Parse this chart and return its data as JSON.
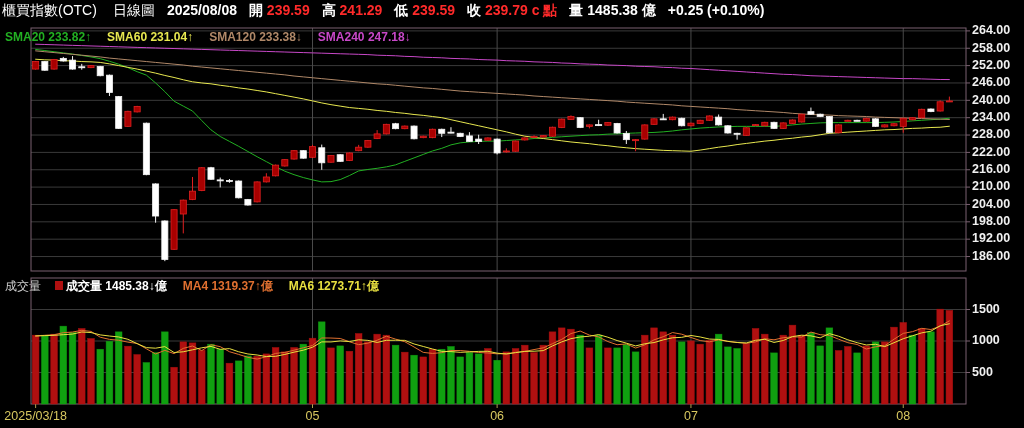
{
  "chart_data": [
    {
      "type": "candlestick",
      "title": "櫃買指數(OTC)",
      "subtitle": "日線圖",
      "annotations": [
        "2025/08/08",
        "開 239.59",
        "高 241.29",
        "低 239.59",
        "收 239.79 c 點",
        "量 1485.38 億",
        "+0.25 (+0.10%)"
      ],
      "categories": [
        "2025/03/18",
        null,
        null,
        null,
        null,
        null,
        null,
        null,
        null,
        null,
        null,
        null,
        null,
        null,
        null,
        null,
        null,
        null,
        null,
        null,
        null,
        null,
        null,
        null,
        null,
        null,
        null,
        null,
        null,
        null,
        "05",
        null,
        null,
        null,
        null,
        null,
        null,
        null,
        null,
        null,
        null,
        null,
        null,
        null,
        null,
        null,
        null,
        null,
        null,
        null,
        "06",
        null,
        null,
        null,
        null,
        null,
        null,
        null,
        null,
        null,
        null,
        null,
        null,
        null,
        null,
        null,
        null,
        null,
        null,
        null,
        null,
        "07",
        null,
        null,
        null,
        null,
        null,
        null,
        null,
        null,
        null,
        null,
        null,
        null,
        null,
        null,
        null,
        null,
        null,
        null,
        null,
        null,
        null,
        null,
        "08",
        null,
        null,
        null,
        null,
        null
      ],
      "ohlc": [
        [
          250.8,
          253.6,
          250.6,
          253.4
        ],
        [
          253.4,
          253.6,
          250.2,
          250.4
        ],
        [
          250.8,
          254.3,
          250.6,
          254.1
        ],
        [
          254.5,
          255.0,
          253.4,
          253.6
        ],
        [
          253.9,
          255.3,
          250.6,
          250.8
        ],
        [
          251.6,
          252.6,
          250.6,
          251.3
        ],
        [
          251.3,
          252.2,
          251.1,
          252.0
        ],
        [
          251.7,
          251.9,
          248.3,
          248.5
        ],
        [
          248.7,
          248.9,
          241.5,
          242.7
        ],
        [
          241.3,
          241.5,
          230.1,
          230.3
        ],
        [
          231.0,
          236.4,
          230.8,
          236.2
        ],
        [
          236.0,
          238.1,
          235.8,
          237.9
        ],
        [
          232.1,
          232.3,
          214.1,
          214.3
        ],
        [
          211.1,
          211.3,
          197.7,
          200.0
        ],
        [
          198.3,
          198.5,
          184.4,
          185.0
        ],
        [
          188.5,
          202.4,
          188.3,
          202.2
        ],
        [
          200.7,
          205.7,
          194.0,
          205.5
        ],
        [
          205.7,
          213.5,
          205.5,
          208.6
        ],
        [
          208.8,
          216.9,
          208.6,
          216.7
        ],
        [
          216.7,
          217.0,
          212.5,
          212.7
        ],
        [
          212.5,
          213.3,
          209.9,
          212.3
        ],
        [
          212.3,
          212.8,
          211.5,
          212.1
        ],
        [
          212.1,
          212.3,
          206.1,
          206.3
        ],
        [
          205.7,
          205.9,
          203.6,
          203.8
        ],
        [
          204.9,
          212.0,
          204.7,
          211.8
        ],
        [
          211.8,
          214.8,
          211.6,
          213.5
        ],
        [
          213.9,
          217.8,
          213.7,
          217.6
        ],
        [
          217.3,
          219.7,
          217.1,
          219.5
        ],
        [
          219.7,
          222.8,
          219.5,
          222.6
        ],
        [
          222.6,
          222.8,
          219.8,
          220.0
        ],
        [
          220.3,
          224.6,
          220.1,
          224.0
        ],
        [
          223.6,
          224.7,
          216.0,
          218.4
        ],
        [
          218.6,
          221.1,
          218.4,
          220.9
        ],
        [
          221.2,
          221.4,
          218.7,
          218.9
        ],
        [
          219.2,
          222.0,
          219.0,
          221.8
        ],
        [
          222.6,
          224.6,
          222.4,
          223.8
        ],
        [
          223.8,
          226.3,
          223.6,
          226.1
        ],
        [
          226.8,
          229.7,
          226.6,
          228.4
        ],
        [
          228.4,
          231.9,
          228.2,
          231.7
        ],
        [
          231.9,
          232.2,
          230.0,
          230.2
        ],
        [
          230.2,
          231.3,
          230.0,
          231.1
        ],
        [
          231.1,
          231.3,
          226.5,
          226.7
        ],
        [
          227.1,
          227.8,
          226.9,
          227.6
        ],
        [
          227.1,
          230.2,
          226.9,
          230.0
        ],
        [
          230.0,
          230.2,
          227.3,
          228.6
        ],
        [
          229.0,
          230.7,
          228.6,
          228.8
        ],
        [
          228.6,
          228.8,
          227.3,
          227.5
        ],
        [
          227.7,
          229.0,
          225.6,
          225.8
        ],
        [
          226.6,
          228.1,
          224.9,
          225.8
        ],
        [
          226.2,
          227.2,
          226.0,
          227.0
        ],
        [
          226.6,
          226.8,
          221.3,
          221.8
        ],
        [
          222.2,
          223.4,
          221.9,
          222.5
        ],
        [
          222.4,
          226.1,
          222.2,
          225.9
        ],
        [
          226.3,
          227.2,
          226.1,
          227.0
        ],
        [
          227.2,
          227.9,
          226.9,
          227.5
        ],
        [
          227.3,
          228.0,
          227.1,
          227.8
        ],
        [
          227.6,
          230.9,
          227.4,
          230.7
        ],
        [
          230.6,
          233.7,
          230.4,
          233.5
        ],
        [
          233.4,
          234.8,
          233.2,
          234.4
        ],
        [
          234.0,
          234.2,
          230.4,
          230.6
        ],
        [
          231.0,
          231.7,
          230.3,
          231.5
        ],
        [
          231.6,
          233.3,
          231.1,
          231.3
        ],
        [
          231.4,
          232.5,
          231.2,
          232.3
        ],
        [
          232.0,
          232.2,
          228.5,
          228.7
        ],
        [
          228.5,
          229.4,
          224.9,
          226.4
        ],
        [
          226.1,
          226.6,
          222.4,
          226.4
        ],
        [
          226.6,
          231.7,
          226.4,
          231.5
        ],
        [
          231.7,
          233.8,
          231.5,
          233.6
        ],
        [
          233.6,
          235.3,
          233.2,
          233.4
        ],
        [
          233.3,
          234.4,
          233.1,
          234.2
        ],
        [
          233.8,
          234.0,
          231.0,
          231.2
        ],
        [
          231.2,
          232.3,
          231.0,
          232.1
        ],
        [
          232.0,
          233.3,
          231.8,
          233.1
        ],
        [
          233.1,
          234.8,
          232.9,
          234.6
        ],
        [
          234.2,
          235.1,
          231.3,
          231.5
        ],
        [
          231.2,
          231.4,
          228.5,
          228.7
        ],
        [
          228.6,
          228.8,
          226.4,
          228.4
        ],
        [
          227.9,
          230.7,
          227.7,
          230.5
        ],
        [
          231.4,
          231.8,
          231.2,
          231.6
        ],
        [
          231.2,
          232.6,
          231.0,
          232.4
        ],
        [
          232.4,
          232.6,
          230.1,
          230.3
        ],
        [
          230.3,
          232.4,
          230.1,
          232.2
        ],
        [
          232.0,
          233.4,
          231.8,
          233.2
        ],
        [
          232.5,
          235.4,
          232.3,
          235.2
        ],
        [
          236.1,
          237.5,
          235.0,
          235.2
        ],
        [
          235.2,
          235.4,
          234.2,
          234.4
        ],
        [
          234.4,
          234.6,
          228.6,
          228.8
        ],
        [
          228.8,
          231.7,
          228.6,
          231.5
        ],
        [
          232.9,
          233.3,
          232.7,
          233.1
        ],
        [
          233.1,
          233.3,
          232.7,
          232.9
        ],
        [
          232.8,
          234.0,
          232.6,
          233.8
        ],
        [
          233.6,
          233.8,
          230.8,
          231.0
        ],
        [
          230.8,
          231.7,
          230.6,
          231.5
        ],
        [
          231.2,
          232.1,
          231.0,
          231.9
        ],
        [
          231.0,
          234.0,
          228.8,
          233.8
        ],
        [
          233.3,
          234.2,
          233.1,
          234.0
        ],
        [
          234.0,
          237.1,
          233.8,
          236.9
        ],
        [
          237.0,
          237.2,
          235.9,
          236.1
        ],
        [
          236.3,
          240.0,
          236.1,
          239.5
        ],
        [
          239.59,
          241.29,
          239.59,
          239.79
        ]
      ],
      "series": [
        {
          "type": "line",
          "name": "SMA20 233.82↑",
          "color": "#22b022",
          "values": [
            257.6,
            257.2,
            256.8,
            256.4,
            256.0,
            255.5,
            255.0,
            254.4,
            253.5,
            252.5,
            251.3,
            249.9,
            248.7,
            246.0,
            243.0,
            239.7,
            238.0,
            236.3,
            233.0,
            229.8,
            227.5,
            225.8,
            224.1,
            222.3,
            220.5,
            218.8,
            217.1,
            215.5,
            214.3,
            213.3,
            212.5,
            211.8,
            211.9,
            212.6,
            214.0,
            215.6,
            216.1,
            216.5,
            217.0,
            217.7,
            218.9,
            220.1,
            221.3,
            222.5,
            223.4,
            224.6,
            225.3,
            225.6,
            225.8,
            225.9,
            225.9,
            226.1,
            226.3,
            226.5,
            226.8,
            227.0,
            227.2,
            227.4,
            227.6,
            227.8,
            228.0,
            228.1,
            228.3,
            228.4,
            228.6,
            228.7,
            228.8,
            228.9,
            229.1,
            229.4,
            229.8,
            230.1,
            230.4,
            230.6,
            230.8,
            230.9,
            231.0,
            231.0,
            231.0,
            231.0,
            231.0,
            231.2,
            231.5,
            231.8,
            232.0,
            232.2,
            232.3,
            232.3,
            232.3,
            232.3,
            232.3,
            232.3,
            232.4,
            232.5,
            232.7,
            232.9,
            233.1,
            233.3,
            233.5,
            233.82
          ]
        },
        {
          "type": "line",
          "name": "SMA60 231.04↑",
          "color": "#e8e850",
          "values": [
            254.2,
            254.0,
            253.9,
            253.7,
            253.6,
            253.4,
            253.3,
            253.1,
            252.6,
            252.0,
            251.4,
            250.8,
            250.1,
            249.4,
            248.6,
            247.9,
            247.1,
            246.4,
            246.0,
            245.7,
            245.2,
            244.8,
            244.3,
            243.9,
            243.4,
            242.9,
            242.3,
            241.7,
            241.1,
            240.5,
            239.8,
            239.1,
            238.5,
            238.0,
            237.5,
            237.2,
            236.9,
            236.5,
            236.2,
            235.8,
            235.5,
            235.1,
            234.8,
            234.4,
            234.0,
            233.3,
            232.6,
            231.9,
            231.2,
            230.5,
            229.8,
            229.1,
            228.3,
            227.6,
            227.2,
            226.8,
            226.4,
            226.0,
            225.6,
            225.3,
            225.0,
            224.6,
            224.3,
            223.9,
            223.6,
            223.3,
            223.1,
            222.9,
            222.7,
            222.6,
            222.5,
            222.4,
            222.8,
            223.3,
            223.8,
            224.2,
            224.7,
            225.1,
            225.5,
            225.9,
            226.2,
            226.6,
            226.9,
            227.3,
            227.6,
            228.1,
            228.6,
            228.8,
            229.0,
            229.2,
            229.4,
            229.6,
            229.8,
            229.9,
            230.1,
            230.3,
            230.4,
            230.6,
            230.7,
            231.04
          ]
        },
        {
          "type": "line",
          "name": "SMA120 233.38↓",
          "color": "#b08868",
          "values": [
            257.1,
            256.8,
            256.5,
            256.2,
            255.9,
            255.6,
            255.3,
            255.0,
            254.6,
            254.3,
            254.0,
            253.7,
            253.4,
            253.1,
            252.8,
            252.5,
            252.2,
            251.8,
            251.5,
            251.2,
            250.9,
            250.6,
            250.3,
            250.0,
            249.7,
            249.4,
            249.1,
            248.8,
            248.4,
            248.1,
            247.8,
            247.5,
            247.2,
            246.9,
            246.6,
            246.3,
            246.0,
            245.7,
            245.5,
            245.2,
            244.9,
            244.6,
            244.3,
            244.1,
            243.8,
            243.5,
            243.2,
            243.0,
            242.8,
            242.6,
            242.4,
            242.2,
            242.0,
            241.8,
            241.5,
            241.3,
            241.1,
            240.9,
            240.7,
            240.5,
            240.3,
            240.1,
            239.9,
            239.7,
            239.4,
            239.2,
            239.0,
            238.8,
            238.6,
            238.4,
            238.1,
            237.9,
            237.7,
            237.5,
            237.3,
            237.1,
            236.8,
            236.6,
            236.4,
            236.2,
            236.0,
            235.8,
            235.5,
            235.3,
            235.1,
            235.0,
            234.9,
            234.7,
            234.6,
            234.5,
            234.4,
            234.2,
            234.1,
            234.0,
            233.9,
            233.8,
            233.7,
            233.6,
            233.5,
            233.38
          ]
        },
        {
          "type": "line",
          "name": "SMA240 247.18↓",
          "color": "#c848c8",
          "values": [
            259.4,
            259.3,
            259.2,
            259.1,
            259.0,
            258.9,
            258.8,
            258.7,
            258.6,
            258.5,
            258.4,
            258.3,
            258.2,
            258.1,
            258.0,
            257.9,
            257.8,
            257.7,
            257.6,
            257.5,
            257.4,
            257.3,
            257.2,
            257.1,
            257.0,
            256.9,
            256.8,
            256.7,
            256.6,
            256.5,
            256.4,
            256.3,
            256.2,
            256.1,
            256.0,
            255.9,
            255.8,
            255.6,
            255.5,
            255.4,
            255.2,
            255.1,
            254.9,
            254.8,
            254.7,
            254.5,
            254.4,
            254.3,
            254.1,
            254.0,
            253.9,
            253.7,
            253.6,
            253.5,
            253.3,
            253.2,
            253.1,
            252.9,
            252.8,
            252.6,
            252.5,
            252.4,
            252.2,
            252.1,
            252.0,
            251.8,
            251.7,
            251.6,
            251.4,
            251.3,
            251.1,
            251.0,
            250.8,
            250.6,
            250.4,
            250.2,
            250.0,
            249.8,
            249.6,
            249.4,
            249.2,
            249.0,
            248.9,
            248.7,
            248.5,
            248.4,
            248.3,
            248.2,
            248.1,
            248.0,
            247.9,
            247.8,
            247.7,
            247.6,
            247.5,
            247.5,
            247.4,
            247.3,
            247.2,
            247.18
          ]
        }
      ],
      "ylim": [
        181,
        265
      ],
      "yticks": [
        {
          "value": 264,
          "label": "264.00"
        },
        {
          "value": 258,
          "label": "258.00"
        },
        {
          "value": 252,
          "label": "252.00"
        },
        {
          "value": 246,
          "label": "246.00"
        },
        {
          "value": 240,
          "label": "240.00"
        },
        {
          "value": 234,
          "label": "234.00"
        },
        {
          "value": 228,
          "label": "228.00"
        },
        {
          "value": 222,
          "label": "222.00"
        },
        {
          "value": 216,
          "label": "216.00"
        },
        {
          "value": 210,
          "label": "210.00"
        },
        {
          "value": 204,
          "label": "204.00"
        },
        {
          "value": 198,
          "label": "198.00"
        },
        {
          "value": 192,
          "label": "192.00"
        },
        {
          "value": 186,
          "label": "186.00"
        }
      ],
      "grid": true,
      "legend": "top left",
      "tick_labels": "y"
    },
    {
      "type": "bar",
      "title": "成交量",
      "categories": [
        "2025/03/18",
        null,
        null,
        null,
        null,
        null,
        null,
        null,
        null,
        null,
        null,
        null,
        null,
        null,
        null,
        null,
        null,
        null,
        null,
        null,
        null,
        null,
        null,
        null,
        null,
        null,
        null,
        null,
        null,
        null,
        "05",
        null,
        null,
        null,
        null,
        null,
        null,
        null,
        null,
        null,
        null,
        null,
        null,
        null,
        null,
        null,
        null,
        null,
        null,
        null,
        "06",
        null,
        null,
        null,
        null,
        null,
        null,
        null,
        null,
        null,
        null,
        null,
        null,
        null,
        null,
        null,
        null,
        null,
        null,
        null,
        null,
        "07",
        null,
        null,
        null,
        null,
        null,
        null,
        null,
        null,
        null,
        null,
        null,
        null,
        null,
        null,
        null,
        null,
        null,
        null,
        null,
        null,
        null,
        null,
        "08",
        null,
        null,
        null,
        null,
        null
      ],
      "series": [
        {
          "type": "bar",
          "name": "成交量 1485.38↓億",
          "colors": [
            "#b01010",
            "#10a010",
            "#b01010",
            "#10a010",
            "#10a010",
            "#b01010",
            "#b01010",
            "#10a010",
            "#10a010",
            "#10a010",
            "#b01010",
            "#b01010",
            "#10a010",
            "#10a010",
            "#10a010",
            "#b01010",
            "#b01010",
            "#b01010",
            "#b01010",
            "#10a010",
            "#10a010",
            "#b01010",
            "#10a010",
            "#10a010",
            "#b01010",
            "#b01010",
            "#b01010",
            "#b01010",
            "#b01010",
            "#10a010",
            "#b01010",
            "#10a010",
            "#b01010",
            "#10a010",
            "#b01010",
            "#b01010",
            "#b01010",
            "#b01010",
            "#b01010",
            "#10a010",
            "#b01010",
            "#10a010",
            "#b01010",
            "#b01010",
            "#10a010",
            "#10a010",
            "#10a010",
            "#10a010",
            "#10a010",
            "#b01010",
            "#10a010",
            "#b01010",
            "#b01010",
            "#b01010",
            "#b01010",
            "#b01010",
            "#b01010",
            "#b01010",
            "#b01010",
            "#10a010",
            "#b01010",
            "#10a010",
            "#b01010",
            "#10a010",
            "#10a010",
            "#10a010",
            "#b01010",
            "#b01010",
            "#b01010",
            "#b01010",
            "#10a010",
            "#b01010",
            "#b01010",
            "#b01010",
            "#10a010",
            "#10a010",
            "#10a010",
            "#b01010",
            "#b01010",
            "#b01010",
            "#10a010",
            "#b01010",
            "#b01010",
            "#b01010",
            "#10a010",
            "#10a010",
            "#10a010",
            "#b01010",
            "#b01010",
            "#10a010",
            "#b01010",
            "#10a010",
            "#b01010",
            "#b01010",
            "#b01010",
            "#10a010",
            "#b01010",
            "#10a010",
            "#b01010",
            "#b01010"
          ],
          "values": [
            1092,
            1092,
            1108,
            1235,
            1134,
            1198,
            1039,
            869,
            996,
            1145,
            917,
            784,
            657,
            816,
            1145,
            583,
            986,
            970,
            853,
            949,
            869,
            647,
            684,
            763,
            758,
            795,
            896,
            827,
            896,
            949,
            1044,
            1304,
            890,
            922,
            837,
            1118,
            986,
            1108,
            1092,
            933,
            822,
            774,
            747,
            869,
            869,
            912,
            747,
            816,
            795,
            880,
            694,
            827,
            880,
            933,
            816,
            933,
            1145,
            1208,
            1187,
            1092,
            890,
            1092,
            890,
            890,
            943,
            827,
            1092,
            1208,
            1145,
            1092,
            986,
            1002,
            949,
            1012,
            1108,
            906,
            880,
            959,
            1198,
            1108,
            811,
            1092,
            1251,
            1092,
            1134,
            922,
            1208,
            848,
            912,
            811,
            922,
            986,
            986,
            1219,
            1293,
            1092,
            1198,
            1145,
            1505,
            1485.38
          ]
        },
        {
          "type": "line",
          "name": "MA4 1319.37↑億",
          "color": "#e07030",
          "values": [
            1080,
            1090,
            1100,
            1132,
            1142,
            1169,
            1152,
            1060,
            1026,
            1012,
            982,
            961,
            876,
            794,
            851,
            800,
            883,
            921,
            848,
            940,
            910,
            830,
            787,
            741,
            713,
            750,
            803,
            819,
            854,
            892,
            929,
            1048,
            1047,
            1040,
            988,
            942,
            966,
            1012,
            1076,
            1030,
            989,
            905,
            819,
            803,
            815,
            849,
            849,
            836,
            818,
            810,
            796,
            799,
            820,
            834,
            864,
            891,
            957,
            1026,
            1118,
            1158,
            1094,
            1065,
            991,
            941,
            954,
            888,
            938,
            1018,
            1068,
            1134,
            1108,
            1056,
            1007,
            987,
            1018,
            994,
            977,
            963,
            986,
            1036,
            1019,
            1052,
            1066,
            1062,
            1142,
            1100,
            1089,
            1028,
            973,
            945,
            873,
            908,
            926,
            1028,
            1121,
            1148,
            1201,
            1182,
            1235,
            1319.37
          ]
        },
        {
          "type": "line",
          "name": "MA6 1273.71↑億",
          "color": "#e8e040",
          "values": [
            1080,
            1085,
            1090,
            1100,
            1110,
            1143,
            1134,
            1097,
            1079,
            1064,
            1027,
            958,
            895,
            886,
            911,
            817,
            829,
            860,
            892,
            914,
            868,
            879,
            829,
            794,
            778,
            753,
            757,
            787,
            823,
            854,
            901,
            986,
            985,
            1001,
            991,
            1019,
            1010,
            977,
            1011,
            1012,
            1010,
            953,
            913,
            873,
            836,
            832,
            820,
            827,
            835,
            837,
            807,
            793,
            815,
            835,
            838,
            847,
            922,
            986,
            1037,
            1064,
            1076,
            1102,
            1060,
            1007,
            966,
            922,
            956,
            975,
            1018,
            1051,
            1058,
            1088,
            1064,
            1031,
            1025,
            994,
            976,
            969,
            1011,
            1027,
            977,
            1008,
            1070,
            1092,
            1081,
            1050,
            1117,
            1076,
            1019,
            973,
            937,
            948,
            911,
            973,
            1036,
            1083,
            1129,
            1156,
            1242,
            1273.71
          ]
        }
      ],
      "ylim": [
        0,
        2000
      ],
      "yticks": [
        500,
        1000,
        1500
      ],
      "grid": true,
      "legend": "top left"
    }
  ]
}
